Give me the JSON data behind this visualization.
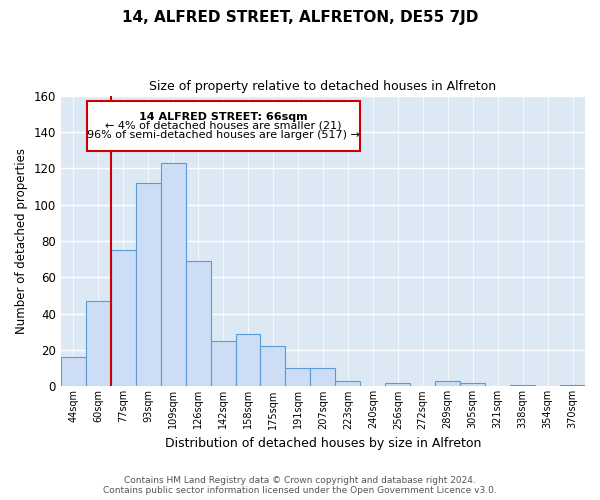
{
  "title": "14, ALFRED STREET, ALFRETON, DE55 7JD",
  "subtitle": "Size of property relative to detached houses in Alfreton",
  "xlabel": "Distribution of detached houses by size in Alfreton",
  "ylabel": "Number of detached properties",
  "footer_line1": "Contains HM Land Registry data © Crown copyright and database right 2024.",
  "footer_line2": "Contains public sector information licensed under the Open Government Licence v3.0.",
  "bar_labels": [
    "44sqm",
    "60sqm",
    "77sqm",
    "93sqm",
    "109sqm",
    "126sqm",
    "142sqm",
    "158sqm",
    "175sqm",
    "191sqm",
    "207sqm",
    "223sqm",
    "240sqm",
    "256sqm",
    "272sqm",
    "289sqm",
    "305sqm",
    "321sqm",
    "338sqm",
    "354sqm",
    "370sqm"
  ],
  "bar_heights": [
    16,
    47,
    75,
    112,
    123,
    69,
    25,
    29,
    22,
    10,
    10,
    3,
    0,
    2,
    0,
    3,
    2,
    0,
    1,
    0,
    1
  ],
  "bar_color": "#ccddf5",
  "bar_edge_color": "#5b9bd5",
  "ylim": [
    0,
    160
  ],
  "yticks": [
    0,
    20,
    40,
    60,
    80,
    100,
    120,
    140,
    160
  ],
  "property_label": "14 ALFRED STREET: 66sqm",
  "annotation_line1": "← 4% of detached houses are smaller (21)",
  "annotation_line2": "96% of semi-detached houses are larger (517) →",
  "vline_color": "#cc0000",
  "annotation_box_edge_color": "#cc0000",
  "background_color": "#ffffff",
  "plot_bg_color": "#dce9f5",
  "grid_color": "#ffffff",
  "footer_color": "#555555"
}
